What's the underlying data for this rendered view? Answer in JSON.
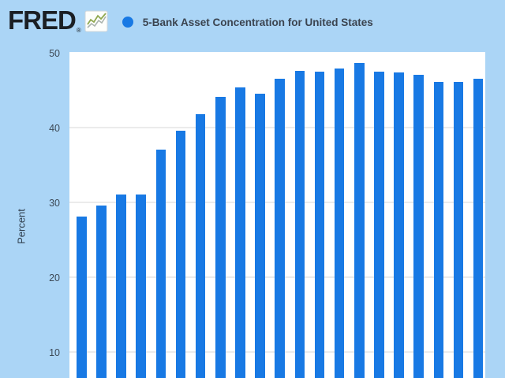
{
  "header": {
    "logo_text": "FRED",
    "logo_registered": "®",
    "legend_label": "5-Bank Asset Concentration for United States"
  },
  "y_axis": {
    "label": "Percent",
    "tick_labels": [
      "50",
      "40",
      "30",
      "20",
      "10"
    ]
  },
  "chart_data": {
    "type": "bar",
    "title": "5-Bank Asset Concentration for United States",
    "xlabel": "",
    "ylabel": "Percent",
    "x_axis_labels_visible": false,
    "categories": [
      "bar-1",
      "bar-2",
      "bar-3",
      "bar-4",
      "bar-5",
      "bar-6",
      "bar-7",
      "bar-8",
      "bar-9",
      "bar-10",
      "bar-11",
      "bar-12",
      "bar-13",
      "bar-14",
      "bar-15",
      "bar-16",
      "bar-17",
      "bar-18",
      "bar-19",
      "bar-20",
      "bar-21"
    ],
    "values": [
      28.0,
      29.5,
      30.9,
      31.0,
      36.9,
      39.5,
      41.7,
      44.0,
      45.3,
      44.4,
      46.4,
      47.5,
      47.4,
      47.8,
      48.5,
      47.4,
      47.3,
      47.0,
      46.0,
      46.0,
      46.4
    ],
    "yticks": [
      50,
      40,
      30,
      20,
      10
    ],
    "y_axis_visible_range": [
      6.5,
      50
    ],
    "grid": true,
    "legend_position": "top-left",
    "colors": {
      "bar": "#1879e4",
      "legend_dot": "#1879e4",
      "background": "#abd5f6",
      "plot_background": "#ffffff",
      "gridline": "#ebebeb",
      "title_text": "#3b4450",
      "tick_text": "#3d4a57",
      "logo_text": "#1b1f24"
    }
  }
}
